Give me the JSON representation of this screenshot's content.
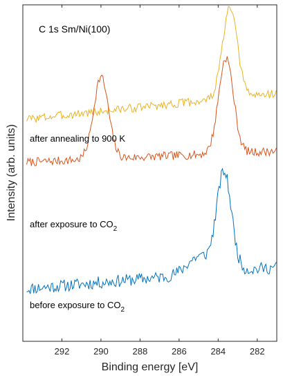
{
  "chart_data": {
    "type": "line",
    "title": "",
    "xlabel": "Binding energy [eV]",
    "ylabel": "Intensity (arb. units)",
    "xlim": [
      294,
      281
    ],
    "x_reversed": true,
    "x_ticks": [
      292,
      290,
      288,
      286,
      284,
      282
    ],
    "y_ticks_shown": false,
    "grid": false,
    "legend": "none",
    "annotation_title": "C 1s  Sm/Ni(100)",
    "series": [
      {
        "name": "after annealing to 900 K",
        "color": "#EDB120",
        "label_parts": [
          "after annealing to 900 K"
        ],
        "baseline": 0.7,
        "peaks": [
          {
            "center": 283.4,
            "height": 1.45,
            "sigma": 0.38
          }
        ],
        "slope": 0.42,
        "noise": 0.07,
        "seed": 3
      },
      {
        "name": "after exposure to CO2",
        "color": "#D95319",
        "label_parts": [
          "after exposure to CO",
          "2"
        ],
        "baseline": 0.0,
        "peaks": [
          {
            "center": 290.0,
            "height": 1.33,
            "sigma": 0.38
          },
          {
            "center": 283.6,
            "height": 1.55,
            "sigma": 0.38
          }
        ],
        "slope": 0.18,
        "noise": 0.07,
        "seed": 7
      },
      {
        "name": "before exposure to CO2",
        "color": "#0072BD",
        "label_parts": [
          "before exposure to CO",
          "2"
        ],
        "baseline": -2.05,
        "peaks": [
          {
            "center": 283.7,
            "height": 1.6,
            "sigma": 0.38
          },
          {
            "center": 285.0,
            "height": 0.28,
            "sigma": 0.6
          }
        ],
        "slope": 0.35,
        "noise": 0.1,
        "seed": 11
      }
    ],
    "ylim": [
      -2.9,
      2.55
    ]
  }
}
